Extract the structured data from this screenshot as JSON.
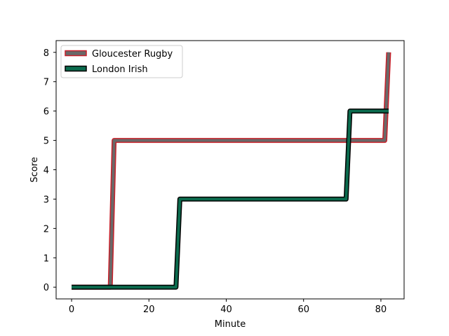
{
  "chart_data": {
    "type": "line",
    "title": "",
    "xlabel": "Minute",
    "ylabel": "Score",
    "xlim": [
      -4,
      86
    ],
    "ylim": [
      -0.4,
      8.4
    ],
    "xticks": [
      0,
      20,
      40,
      60,
      80
    ],
    "yticks": [
      0,
      1,
      2,
      3,
      4,
      5,
      6,
      7,
      8
    ],
    "grid": false,
    "legend_position": "top-left",
    "series": [
      {
        "name": "Gloucester Rugby",
        "line_color": "#696969",
        "edge_color": "#c8202a",
        "x": [
          0,
          10,
          11,
          81,
          82
        ],
        "y": [
          0,
          0,
          5,
          5,
          8
        ]
      },
      {
        "name": "London Irish",
        "line_color": "#0b6b4e",
        "edge_color": "#000000",
        "x": [
          0,
          27,
          28,
          71,
          72,
          82
        ],
        "y": [
          0,
          0,
          3,
          3,
          6,
          6
        ]
      }
    ]
  }
}
